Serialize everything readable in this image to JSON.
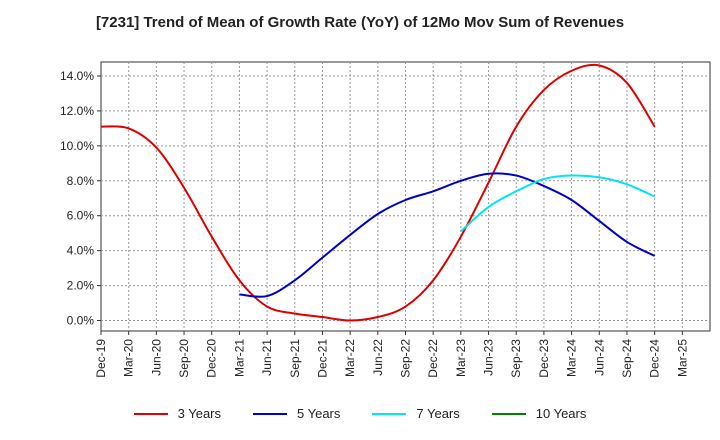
{
  "chart_data": {
    "type": "line",
    "title": "[7231]  Trend of Mean of Growth Rate (YoY) of 12Mo Mov Sum of Revenues",
    "xlabel": "",
    "ylabel": "",
    "ylim": [
      -0.6,
      14.8
    ],
    "yticks": [
      0.0,
      2.0,
      4.0,
      6.0,
      8.0,
      10.0,
      12.0,
      14.0
    ],
    "ytick_labels": [
      "0.0%",
      "2.0%",
      "4.0%",
      "6.0%",
      "8.0%",
      "10.0%",
      "12.0%",
      "14.0%"
    ],
    "xtick_labels": [
      "Dec-19",
      "Mar-20",
      "Jun-20",
      "Sep-20",
      "Dec-20",
      "Mar-21",
      "Jun-21",
      "Sep-21",
      "Dec-21",
      "Mar-22",
      "Jun-22",
      "Sep-22",
      "Dec-22",
      "Mar-23",
      "Jun-23",
      "Sep-23",
      "Dec-23",
      "Mar-24",
      "Jun-24",
      "Sep-24",
      "Dec-24",
      "Mar-25"
    ],
    "grid": true,
    "legend_position": "bottom",
    "series": [
      {
        "name": "3 Years",
        "color": "#dd0000",
        "x": [
          0,
          1,
          2,
          3,
          4,
          5,
          6,
          7,
          8,
          9,
          10,
          11,
          12,
          13,
          14,
          15,
          16,
          17,
          18,
          19,
          20
        ],
        "values": [
          11.1,
          11.0,
          9.9,
          7.6,
          4.8,
          2.3,
          0.8,
          0.4,
          0.2,
          0.0,
          0.2,
          0.8,
          2.3,
          4.8,
          7.9,
          11.1,
          13.2,
          14.3,
          14.6,
          13.6,
          11.1
        ]
      },
      {
        "name": "5 Years",
        "color": "#0000cc",
        "x": [
          5,
          6,
          7,
          8,
          9,
          10,
          11,
          12,
          13,
          14,
          15,
          16,
          17,
          18,
          19,
          20
        ],
        "values": [
          1.5,
          1.4,
          2.3,
          3.6,
          4.9,
          6.1,
          6.9,
          7.4,
          8.0,
          8.4,
          8.3,
          7.7,
          6.9,
          5.7,
          4.5,
          3.7
        ]
      },
      {
        "name": "7 Years",
        "color": "#00e5ee",
        "x": [
          13,
          14,
          15,
          16,
          17,
          18,
          19,
          20
        ],
        "values": [
          5.1,
          6.5,
          7.4,
          8.1,
          8.3,
          8.2,
          7.8,
          7.1
        ]
      },
      {
        "name": "10 Years",
        "color": "#008000",
        "x": [],
        "values": []
      }
    ]
  }
}
